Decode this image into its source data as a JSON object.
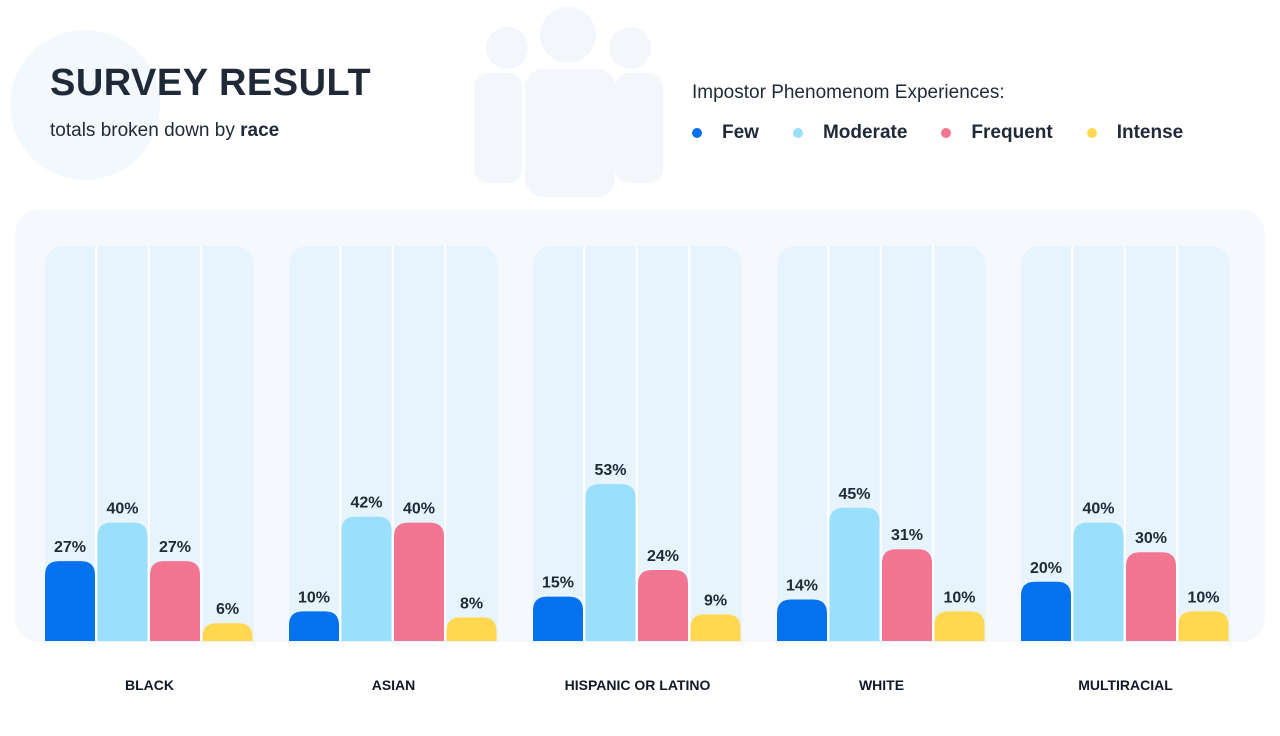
{
  "header": {
    "title": "SURVEY RESULT",
    "subtitle_prefix": "totals broken down by ",
    "subtitle_emphasis": "race"
  },
  "legend": {
    "title": "Impostor Phenomenom Experiences:",
    "items": [
      {
        "label": "Few",
        "color": "#0671ed"
      },
      {
        "label": "Moderate",
        "color": "#9adffb"
      },
      {
        "label": "Frequent",
        "color": "#f27692"
      },
      {
        "label": "Intense",
        "color": "#ffd850"
      }
    ]
  },
  "decor": {
    "people_icon": "group-people-icon"
  },
  "chart_data": {
    "type": "bar",
    "title": "SURVEY RESULT",
    "subtitle": "totals broken down by race",
    "categories": [
      "BLACK",
      "ASIAN",
      "HISPANIC OR LATINO",
      "WHITE",
      "MULTIRACIAL"
    ],
    "series": [
      {
        "name": "Few",
        "color": "#0671ed",
        "values": [
          27,
          10,
          15,
          14,
          20
        ],
        "labels": [
          "27%",
          "10%",
          "15%",
          "14%",
          "20%"
        ]
      },
      {
        "name": "Moderate",
        "color": "#9adffb",
        "values": [
          40,
          42,
          53,
          45,
          40
        ],
        "labels": [
          "40%",
          "42%",
          "53%",
          "45%",
          "40%"
        ]
      },
      {
        "name": "Frequent",
        "color": "#f27692",
        "values": [
          27,
          40,
          24,
          31,
          30
        ],
        "labels": [
          "27%",
          "40%",
          "24%",
          "31%",
          "30%"
        ]
      },
      {
        "name": "Intense",
        "color": "#ffd850",
        "values": [
          6,
          8,
          9,
          10,
          10
        ],
        "labels": [
          "6%",
          "8%",
          "9%",
          "10%",
          "10%"
        ]
      }
    ],
    "value_unit": "%",
    "ylim": [
      0,
      100
    ],
    "xlabel": "",
    "ylabel": "",
    "grid": false,
    "legend_position": "top-right"
  }
}
